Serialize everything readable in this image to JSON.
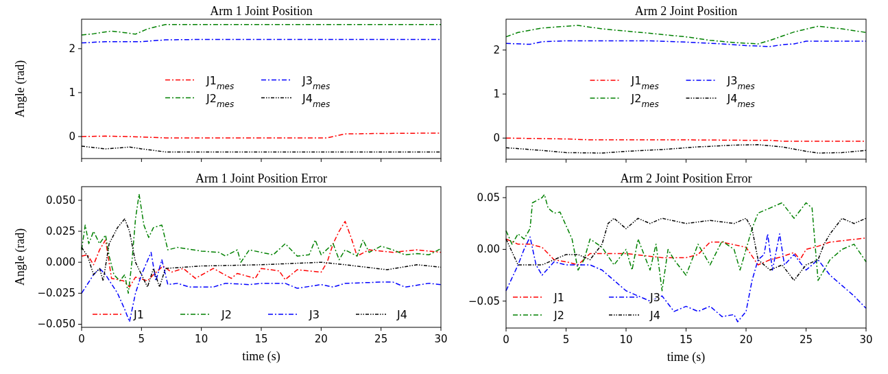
{
  "chart_data": [
    {
      "type": "line",
      "title": "Arm 1 Joint Position",
      "ylabel": "Angle (rad)",
      "xlim": [
        0,
        30
      ],
      "xticks": [
        0,
        5,
        10,
        15,
        20,
        25,
        30
      ],
      "ylim": [
        -0.5,
        2.67
      ],
      "yticks": [
        0,
        1,
        2
      ],
      "tick_labels": "y",
      "legend": "center",
      "grid": false,
      "series": [
        {
          "name": "J1$_{mes}$",
          "color": "#ff0000",
          "line_style": "dashed",
          "x": [
            0,
            2,
            4,
            7,
            10,
            15,
            20,
            20.5,
            22,
            25,
            30
          ],
          "values": [
            0,
            0.01,
            0,
            -0.03,
            -0.03,
            -0.03,
            -0.03,
            -0.03,
            0.06,
            0.07,
            0.08
          ]
        },
        {
          "name": "J2$_{mes}$",
          "color": "#008000",
          "line_style": "dashed",
          "x": [
            0,
            1,
            2,
            2.5,
            4,
            4.5,
            5.5,
            7,
            10,
            15,
            20,
            25,
            30
          ],
          "values": [
            2.31,
            2.34,
            2.38,
            2.4,
            2.35,
            2.33,
            2.45,
            2.55,
            2.55,
            2.55,
            2.55,
            2.55,
            2.55
          ]
        },
        {
          "name": "J3$_{mes}$",
          "color": "#0000ff",
          "line_style": "dashed",
          "x": [
            0,
            2,
            5,
            7,
            10,
            20,
            30
          ],
          "values": [
            2.13,
            2.16,
            2.16,
            2.2,
            2.21,
            2.21,
            2.21
          ]
        },
        {
          "name": "J4$_{mes}$",
          "color": "#000000",
          "line_style": "dotted",
          "x": [
            0,
            2,
            4,
            5,
            7,
            10,
            20,
            30
          ],
          "values": [
            -0.22,
            -0.28,
            -0.24,
            -0.28,
            -0.35,
            -0.35,
            -0.35,
            -0.35
          ]
        }
      ]
    },
    {
      "type": "line",
      "title": "Arm 2 Joint Position",
      "xlim": [
        0,
        30
      ],
      "xticks": [
        0,
        5,
        10,
        15,
        20,
        25,
        30
      ],
      "ylim": [
        -0.48,
        2.7
      ],
      "yticks": [
        0,
        1,
        2
      ],
      "tick_labels": "y",
      "legend": "center",
      "grid": false,
      "series": [
        {
          "name": "J1$_{mes}$",
          "color": "#ff0000",
          "line_style": "dashed",
          "x": [
            0,
            5,
            7,
            15,
            20,
            22,
            23,
            30
          ],
          "values": [
            0,
            -0.02,
            -0.04,
            -0.04,
            -0.05,
            -0.05,
            -0.07,
            -0.07
          ]
        },
        {
          "name": "J2$_{mes}$",
          "color": "#008000",
          "line_style": "dashed",
          "x": [
            0,
            1,
            3,
            6,
            8,
            10,
            12,
            15,
            17,
            19,
            21,
            22,
            24,
            26,
            28,
            30
          ],
          "values": [
            2.3,
            2.4,
            2.5,
            2.56,
            2.48,
            2.43,
            2.38,
            2.3,
            2.22,
            2.17,
            2.14,
            2.22,
            2.41,
            2.54,
            2.48,
            2.4
          ]
        },
        {
          "name": "J3$_{mes}$",
          "color": "#0000ff",
          "line_style": "dashed",
          "x": [
            0,
            2,
            3,
            5,
            12,
            15,
            18,
            20,
            22,
            23,
            24,
            25,
            30
          ],
          "values": [
            2.15,
            2.13,
            2.19,
            2.21,
            2.21,
            2.18,
            2.14,
            2.1,
            2.08,
            2.12,
            2.14,
            2.2,
            2.2
          ]
        },
        {
          "name": "J4$_{mes}$",
          "color": "#000000",
          "line_style": "dotted",
          "x": [
            0,
            3,
            5,
            8,
            10,
            13,
            16,
            19,
            21,
            23,
            25,
            26,
            28,
            30
          ],
          "values": [
            -0.22,
            -0.28,
            -0.33,
            -0.34,
            -0.3,
            -0.26,
            -0.2,
            -0.16,
            -0.15,
            -0.2,
            -0.3,
            -0.34,
            -0.33,
            -0.28
          ]
        }
      ]
    },
    {
      "type": "line",
      "title": "Arm 1 Joint Position Error",
      "xlabel": "time (s)",
      "ylabel": "Angle (rad)",
      "xlim": [
        0,
        30
      ],
      "xticks": [
        0,
        5,
        10,
        15,
        20,
        25,
        30
      ],
      "ylim": [
        -0.0525,
        0.061
      ],
      "yticks": [
        {
          "value": -0.05,
          "label": "−0.050"
        },
        {
          "value": -0.025,
          "label": "−0.025"
        },
        {
          "value": 0,
          "label": "0.000"
        },
        {
          "value": 0.025,
          "label": "0.025"
        },
        {
          "value": 0.05,
          "label": "0.050"
        }
      ],
      "legend": "bottom right",
      "grid": false,
      "series": [
        {
          "name": "J1",
          "color": "#ff0000",
          "line_style": "dashed",
          "x": [
            0,
            0.5,
            1,
            1.5,
            2,
            2.5,
            3.5,
            4,
            4.5,
            5.5,
            6,
            6.8,
            7.5,
            8.5,
            9.5,
            11,
            12.5,
            13,
            14.5,
            15,
            16.5,
            17,
            18,
            20,
            20.5,
            21,
            21.5,
            22,
            22.5,
            23,
            24,
            26,
            28,
            30
          ],
          "values": [
            0.005,
            0.006,
            -0.002,
            0.01,
            0.018,
            -0.013,
            -0.015,
            -0.02,
            -0.012,
            -0.015,
            -0.01,
            -0.003,
            -0.008,
            -0.005,
            -0.013,
            -0.005,
            -0.013,
            -0.009,
            -0.013,
            -0.005,
            -0.007,
            -0.014,
            -0.006,
            -0.008,
            0,
            0.015,
            0.025,
            0.033,
            0.02,
            0.005,
            0.01,
            0.008,
            0.01,
            0.008
          ]
        },
        {
          "name": "J2",
          "color": "#008000",
          "line_style": "dashed",
          "x": [
            0,
            0.3,
            0.6,
            1,
            1.5,
            2,
            2.3,
            2.7,
            3.2,
            3.6,
            3.9,
            4.2,
            4.5,
            4.8,
            5.2,
            5.6,
            6,
            6.7,
            7.2,
            8,
            10,
            11.5,
            12,
            13,
            13.3,
            14,
            15,
            16,
            17,
            18,
            19,
            19.5,
            20,
            21,
            21.5,
            22,
            23,
            23.5,
            24,
            25,
            26,
            27,
            28,
            29,
            30
          ],
          "values": [
            0.01,
            0.03,
            0.015,
            0.025,
            0.015,
            0.022,
            0.005,
            -0.01,
            -0.015,
            -0.01,
            -0.025,
            0,
            0.035,
            0.055,
            0.03,
            0.02,
            0.028,
            0.03,
            0.01,
            0.012,
            0.009,
            0.008,
            0.005,
            0.01,
            0,
            0.01,
            0.008,
            0.006,
            0.015,
            0.005,
            0.006,
            0.018,
            0.006,
            0.015,
            0.002,
            0.01,
            0.005,
            0.018,
            0.008,
            0.013,
            0.01,
            0.006,
            0.007,
            0.006,
            0.011
          ]
        },
        {
          "name": "J3",
          "color": "#0000ff",
          "line_style": "dashed",
          "x": [
            0,
            1,
            1.5,
            2,
            3,
            3.6,
            4,
            4.5,
            5,
            5.8,
            6.2,
            6.7,
            7.2,
            8,
            9,
            11,
            12,
            14,
            15,
            17,
            18,
            20,
            21,
            22,
            25,
            26,
            27,
            29,
            30
          ],
          "values": [
            -0.025,
            -0.01,
            -0.005,
            -0.01,
            -0.025,
            -0.038,
            -0.048,
            -0.025,
            -0.01,
            0.008,
            -0.015,
            0.002,
            -0.018,
            -0.017,
            -0.02,
            -0.02,
            -0.017,
            -0.018,
            -0.017,
            -0.017,
            -0.021,
            -0.018,
            -0.02,
            -0.017,
            -0.016,
            -0.016,
            -0.02,
            -0.017,
            -0.018
          ]
        },
        {
          "name": "J4",
          "color": "#000000",
          "line_style": "dotted",
          "x": [
            0,
            0.5,
            1,
            1.5,
            1.8,
            2.3,
            3,
            3.6,
            4,
            4.5,
            5,
            5.5,
            6,
            6.5,
            7,
            10,
            15,
            20,
            22,
            25.5,
            28,
            30
          ],
          "values": [
            0.012,
            0.005,
            -0.01,
            -0.005,
            -0.015,
            0.015,
            0.028,
            0.035,
            0.025,
            0,
            -0.01,
            -0.02,
            -0.005,
            -0.02,
            -0.005,
            -0.003,
            -0.002,
            0,
            -0.002,
            -0.006,
            -0.002,
            -0.004
          ]
        }
      ]
    },
    {
      "type": "line",
      "title": "Arm 2 Joint Position Error",
      "xlabel": "time (s)",
      "xlim": [
        0,
        30
      ],
      "xticks": [
        0,
        5,
        10,
        15,
        20,
        25,
        30
      ],
      "ylim": [
        -0.076,
        0.0606
      ],
      "yticks": [
        {
          "value": -0.05,
          "label": "−0.05"
        },
        {
          "value": 0,
          "label": "0.00"
        },
        {
          "value": 0.05,
          "label": "0.05"
        }
      ],
      "legend": "bottom left",
      "grid": false,
      "series": [
        {
          "name": "J1",
          "color": "#ff0000",
          "line_style": "dashed",
          "x": [
            0,
            1,
            2,
            3,
            4,
            5,
            6,
            7,
            10,
            13,
            15,
            16,
            17,
            18,
            20,
            21,
            22,
            23,
            24,
            24.5,
            25,
            26,
            27,
            30
          ],
          "values": [
            0.01,
            0.005,
            0.005,
            0.002,
            -0.01,
            -0.012,
            -0.015,
            -0.004,
            -0.004,
            -0.008,
            -0.008,
            -0.005,
            0.007,
            0.007,
            0.002,
            -0.015,
            -0.01,
            -0.007,
            -0.003,
            -0.01,
            0,
            0.003,
            0.007,
            0.011
          ]
        },
        {
          "name": "J2",
          "color": "#008000",
          "line_style": "dashed",
          "x": [
            0,
            0.5,
            1,
            1.5,
            2,
            2.2,
            3,
            3.2,
            3.5,
            4,
            4.5,
            5,
            5.5,
            6,
            6.5,
            7,
            8,
            9,
            10,
            10.5,
            11,
            12,
            12.5,
            13,
            13.5,
            14,
            15,
            16,
            17,
            18,
            19,
            19.5,
            20,
            20.5,
            21,
            22,
            23,
            24,
            25,
            25.5,
            26,
            27,
            28,
            29,
            30
          ],
          "values": [
            0.018,
            0.005,
            0.015,
            0.01,
            0.02,
            0.045,
            0.05,
            0.053,
            0.04,
            0.035,
            0.036,
            0.023,
            0.01,
            -0.02,
            -0.01,
            0.01,
            0.002,
            -0.015,
            0,
            -0.02,
            0.01,
            -0.02,
            0.005,
            -0.04,
            0,
            -0.01,
            -0.025,
            0.005,
            -0.015,
            0.008,
            0,
            -0.02,
            0,
            0.02,
            0.035,
            0.04,
            0.045,
            0.03,
            0.045,
            0.04,
            -0.03,
            -0.01,
            0,
            0.005,
            -0.012
          ]
        },
        {
          "name": "J3",
          "color": "#0000ff",
          "line_style": "dashed",
          "x": [
            0,
            1,
            1.5,
            2,
            2.5,
            3,
            4,
            5,
            6,
            7,
            8,
            9,
            10,
            11,
            12,
            13,
            14,
            15,
            16,
            17,
            18,
            19,
            19.3,
            20,
            20.5,
            21,
            21.5,
            21.8,
            22.2,
            22.8,
            23.2,
            24,
            25,
            26,
            27,
            28,
            29,
            30
          ],
          "values": [
            -0.04,
            -0.015,
            0,
            0.012,
            -0.015,
            -0.025,
            -0.012,
            -0.015,
            -0.015,
            -0.015,
            -0.02,
            -0.03,
            -0.04,
            -0.045,
            -0.05,
            -0.045,
            -0.06,
            -0.055,
            -0.06,
            -0.055,
            -0.065,
            -0.063,
            -0.07,
            -0.06,
            -0.03,
            -0.01,
            -0.005,
            0.015,
            -0.02,
            0.015,
            -0.015,
            -0.005,
            -0.02,
            -0.01,
            -0.025,
            -0.035,
            -0.045,
            -0.057
          ]
        },
        {
          "name": "J4",
          "color": "#000000",
          "line_style": "dotted",
          "x": [
            0,
            1,
            2,
            3,
            4,
            5,
            6,
            7,
            8,
            8.5,
            9,
            10,
            11,
            12,
            13,
            15,
            17,
            19,
            20,
            20.5,
            21,
            22,
            23,
            24,
            25,
            26,
            26.5,
            27,
            28,
            29,
            30
          ],
          "values": [
            0.01,
            -0.015,
            -0.015,
            -0.015,
            -0.01,
            -0.005,
            -0.005,
            -0.01,
            0.005,
            0.025,
            0.03,
            0.02,
            0.03,
            0.025,
            0.03,
            0.025,
            0.028,
            0.025,
            0.03,
            0.02,
            -0.01,
            -0.02,
            -0.015,
            -0.03,
            -0.015,
            -0.01,
            0.005,
            0.015,
            0.03,
            0.025,
            0.03
          ]
        }
      ]
    }
  ]
}
